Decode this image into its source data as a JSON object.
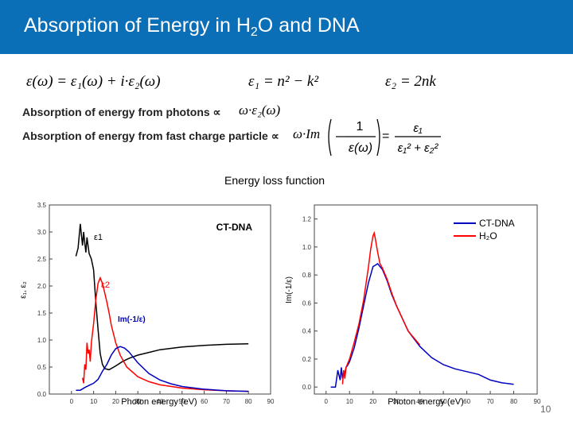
{
  "header": {
    "title_pre": "Absorption of Energy in H",
    "title_sub": "2",
    "title_post": "O and DNA",
    "bg_color": "#0b6fb8"
  },
  "equations": {
    "eq1": "ε(ω) = ε₁(ω) + i·ε₂(ω)",
    "eq2": "ε₁ = n² − k²",
    "eq3": "ε₂ = 2nk",
    "photons_label": "Absorption of energy from photons ∝",
    "photons_expr": "ω·ε₂(ω)",
    "charged_label": "Absorption of energy from fast charge particle ∝",
    "charged_expr_lhs": "ω·Im",
    "frac_num": "1",
    "frac_den": "ε(ω)",
    "rhs_num": "ε₁",
    "rhs_den": "ε₁² + ε₂²"
  },
  "caption": "Energy loss function",
  "page_number": "10",
  "chart_data": [
    {
      "type": "line",
      "title": "CT-DNA",
      "xlabel": "Photon energy (eV)",
      "ylabel": "ε₁, ε₂",
      "xlim": [
        -10,
        90
      ],
      "ylim": [
        0,
        3.5
      ],
      "xticks": [
        "0",
        "10",
        "20",
        "30",
        "40",
        "50",
        "60",
        "70",
        "80",
        "90"
      ],
      "yticks": [
        "0.0",
        "0.5",
        "1.0",
        "1.5",
        "2.0",
        "2.5",
        "3.0",
        "3.5"
      ],
      "grid": false,
      "series": [
        {
          "name": "ε1",
          "color": "#000000",
          "x": [
            2,
            3,
            4,
            4.5,
            5,
            5.5,
            6,
            6.5,
            7,
            8,
            9,
            10,
            11,
            12,
            13,
            14,
            15,
            17,
            20,
            23,
            26,
            30,
            35,
            40,
            50,
            60,
            70,
            80
          ],
          "y": [
            2.55,
            2.7,
            3.15,
            2.95,
            2.75,
            3.0,
            2.8,
            2.62,
            2.9,
            2.6,
            2.5,
            2.3,
            1.7,
            1.2,
            0.75,
            0.55,
            0.47,
            0.45,
            0.52,
            0.6,
            0.66,
            0.72,
            0.77,
            0.82,
            0.87,
            0.9,
            0.92,
            0.93
          ]
        },
        {
          "name": "ε2",
          "color": "#ff0000",
          "x": [
            5,
            5.5,
            6,
            6.5,
            7,
            7.5,
            8,
            8.5,
            9,
            10,
            11,
            12,
            13,
            14,
            15,
            16,
            17,
            18,
            20,
            22,
            25,
            30,
            35,
            40,
            50,
            60,
            70,
            80
          ],
          "y": [
            0.3,
            0.2,
            0.55,
            0.45,
            0.95,
            0.75,
            0.82,
            0.6,
            0.95,
            1.3,
            1.75,
            2.05,
            2.15,
            2.05,
            1.88,
            1.7,
            1.5,
            1.28,
            0.95,
            0.72,
            0.5,
            0.32,
            0.23,
            0.17,
            0.11,
            0.08,
            0.06,
            0.05
          ]
        },
        {
          "name": "Im(-1/ε)",
          "color": "#0000c0",
          "x": [
            2,
            4,
            6,
            8,
            10,
            12,
            14,
            16,
            18,
            20,
            22,
            24,
            26,
            28,
            30,
            35,
            40,
            45,
            50,
            60,
            70,
            80
          ],
          "y": [
            0.07,
            0.07,
            0.12,
            0.16,
            0.2,
            0.27,
            0.42,
            0.55,
            0.72,
            0.84,
            0.88,
            0.85,
            0.78,
            0.68,
            0.58,
            0.38,
            0.26,
            0.19,
            0.14,
            0.09,
            0.06,
            0.05
          ]
        }
      ],
      "annotations": [
        "ε1",
        "ε2",
        "Im(-1/ε)"
      ]
    },
    {
      "type": "line",
      "xlabel": "Photon energy (eV)",
      "ylabel": "Im(-1/ε)",
      "xlim": [
        -5,
        90
      ],
      "ylim": [
        -0.05,
        1.3
      ],
      "xticks": [
        "0",
        "10",
        "20",
        "30",
        "40",
        "50",
        "60",
        "70",
        "80",
        "90"
      ],
      "yticks": [
        "0.0",
        "0.2",
        "0.4",
        "0.6",
        "0.8",
        "1.0",
        "1.2"
      ],
      "legend_position": "top-right",
      "grid": false,
      "series": [
        {
          "name": "CT-DNA",
          "color": "#0000c0",
          "x": [
            2,
            4,
            5,
            6,
            6.5,
            7,
            7.5,
            8,
            8.5,
            9,
            10,
            12,
            14,
            16,
            18,
            20,
            22,
            24,
            26,
            28,
            30,
            35,
            40,
            45,
            50,
            55,
            60,
            65,
            70,
            75,
            80
          ],
          "y": [
            0.0,
            0.0,
            0.12,
            0.05,
            0.14,
            0.06,
            0.1,
            0.1,
            0.14,
            0.15,
            0.18,
            0.28,
            0.42,
            0.58,
            0.74,
            0.86,
            0.88,
            0.84,
            0.76,
            0.66,
            0.58,
            0.4,
            0.29,
            0.21,
            0.16,
            0.13,
            0.11,
            0.09,
            0.05,
            0.03,
            0.02
          ]
        },
        {
          "name": "H₂O",
          "color": "#ff0000",
          "x": [
            7,
            7.5,
            8,
            8.5,
            9,
            10,
            12,
            14,
            16,
            18,
            19,
            20,
            20.5,
            21,
            22,
            23,
            24,
            26,
            28,
            30,
            35,
            40
          ],
          "y": [
            0.02,
            0.12,
            0.06,
            0.14,
            0.16,
            0.2,
            0.32,
            0.45,
            0.62,
            0.85,
            0.98,
            1.08,
            1.1,
            1.06,
            0.96,
            0.88,
            0.85,
            0.77,
            0.67,
            0.58,
            0.4,
            0.3
          ]
        }
      ]
    }
  ]
}
